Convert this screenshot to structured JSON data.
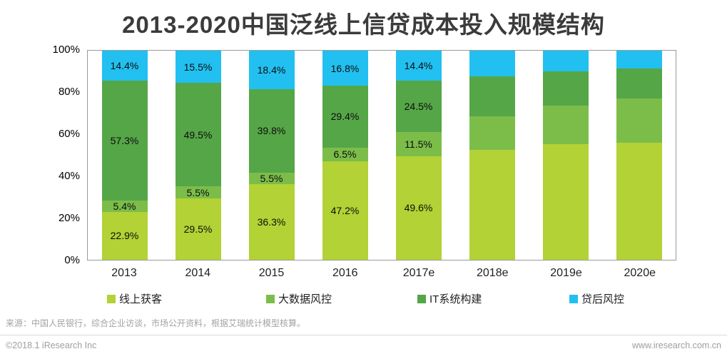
{
  "title": "2013-2020中国泛线上信贷成本投入规模结构",
  "chart_data": {
    "type": "bar",
    "variant": "stacked-percent-column",
    "title": "2013-2020中国泛线上信贷成本投入规模结构",
    "categories": [
      "2013",
      "2014",
      "2015",
      "2016",
      "2017e",
      "2018e",
      "2019e",
      "2020e"
    ],
    "series": [
      {
        "name": "线上获客",
        "color": "#b2d235",
        "values": [
          22.9,
          29.5,
          36.3,
          47.2,
          49.6,
          52.5,
          55.3,
          55.9
        ],
        "labels": [
          "22.9%",
          "29.5%",
          "36.3%",
          "47.2%",
          "49.6%",
          "",
          "",
          ""
        ]
      },
      {
        "name": "大数据风控",
        "color": "#7cbd4a",
        "values": [
          5.4,
          5.5,
          5.5,
          6.5,
          11.5,
          16.0,
          18.4,
          21.2
        ],
        "labels": [
          "5.4%",
          "5.5%",
          "5.5%",
          "6.5%",
          "11.5%",
          "",
          "",
          ""
        ]
      },
      {
        "name": "IT系统构建",
        "color": "#55a647",
        "values": [
          57.3,
          49.5,
          39.8,
          29.4,
          24.5,
          19.2,
          16.5,
          14.5
        ],
        "labels": [
          "57.3%",
          "49.5%",
          "39.8%",
          "29.4%",
          "24.5%",
          "",
          "",
          ""
        ]
      },
      {
        "name": "贷后风控",
        "color": "#22c0f0",
        "values": [
          14.4,
          15.5,
          18.4,
          16.8,
          14.4,
          12.3,
          9.8,
          8.4
        ],
        "labels": [
          "14.4%",
          "15.5%",
          "18.4%",
          "16.8%",
          "14.4%",
          "",
          "",
          ""
        ]
      }
    ],
    "yticks": [
      "0%",
      "20%",
      "40%",
      "60%",
      "80%",
      "100%"
    ],
    "ytick_values": [
      0,
      20,
      40,
      60,
      80,
      100
    ],
    "ylim": [
      0,
      100
    ],
    "grid": false,
    "legend_position": "bottom"
  },
  "legend_x_positions": [
    150,
    373,
    585,
    798
  ],
  "footer": {
    "source": "来源：中国人民银行，综合企业访谈，市场公开资料，根据艾瑞统计模型核算。",
    "copyright": "©2018.1 iResearch Inc",
    "website": "www.iresearch.com.cn"
  }
}
